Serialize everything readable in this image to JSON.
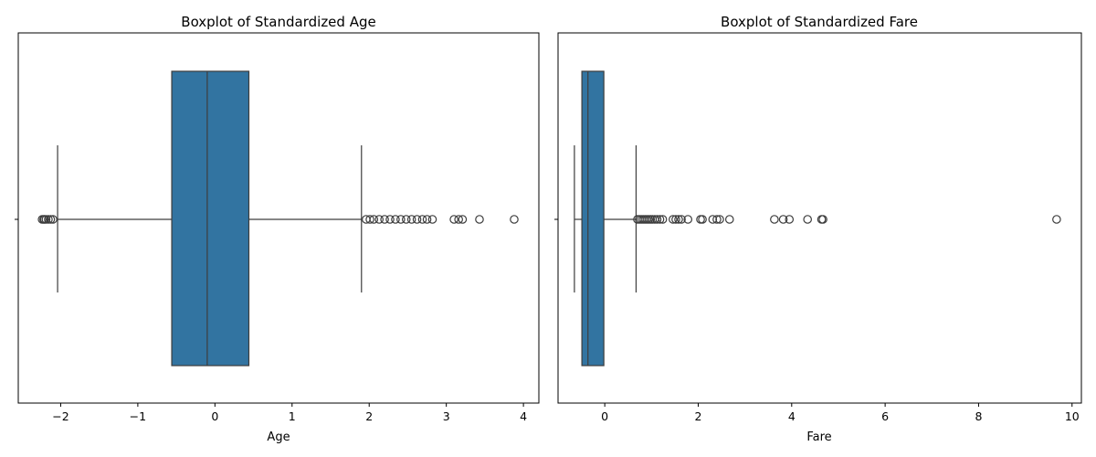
{
  "chart_data": [
    {
      "type": "boxplot",
      "title": "Boxplot of Standardized Age",
      "xlabel": "Age",
      "ylabel": "",
      "xlim": [
        -2.55,
        4.2
      ],
      "xticks": [
        -2,
        -1,
        0,
        1,
        2,
        3,
        4
      ],
      "xtick_labels": [
        "−2",
        "−1",
        "0",
        "1",
        "2",
        "3",
        "4"
      ],
      "grid": false,
      "box": {
        "q1": -0.56,
        "median": -0.1,
        "q3": 0.44,
        "whisker_low": -2.04,
        "whisker_high": 1.9
      },
      "outliers": [
        -2.24,
        -2.22,
        -2.21,
        -2.19,
        -2.16,
        -2.13,
        -2.1,
        1.96,
        2.01,
        2.06,
        2.13,
        2.2,
        2.27,
        2.34,
        2.41,
        2.48,
        2.55,
        2.62,
        2.69,
        2.75,
        2.82,
        3.1,
        3.16,
        3.21,
        3.43,
        3.88
      ],
      "box_color": "#3274a1",
      "line_color": "#3d3d3d"
    },
    {
      "type": "boxplot",
      "title": "Boxplot of Standardized Fare",
      "xlabel": "Fare",
      "ylabel": "",
      "xlim": [
        -1.0,
        10.2
      ],
      "xticks": [
        0,
        2,
        4,
        6,
        8,
        10
      ],
      "xtick_labels": [
        "0",
        "2",
        "4",
        "6",
        "8",
        "10"
      ],
      "grid": false,
      "box": {
        "q1": -0.49,
        "median": -0.36,
        "q3": -0.02,
        "whisker_low": -0.65,
        "whisker_high": 0.67
      },
      "outliers": [
        0.7,
        0.74,
        0.78,
        0.82,
        0.86,
        0.9,
        0.94,
        0.98,
        1.02,
        1.07,
        1.12,
        1.18,
        1.24,
        1.46,
        1.52,
        1.58,
        1.64,
        1.78,
        2.05,
        2.09,
        2.31,
        2.4,
        2.46,
        2.67,
        3.63,
        3.82,
        3.95,
        4.34,
        4.64,
        4.67,
        9.67
      ],
      "box_color": "#3274a1",
      "line_color": "#3d3d3d"
    }
  ]
}
